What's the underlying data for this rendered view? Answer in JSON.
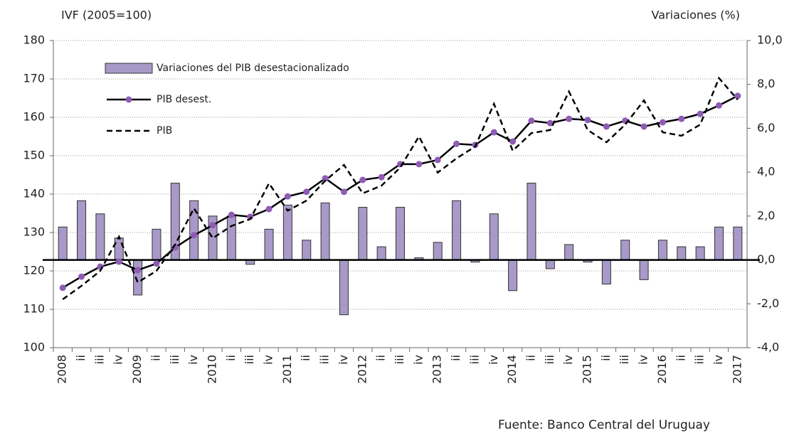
{
  "chart_data": {
    "type": "bar-line",
    "y_label": "IVF (2005=100)",
    "y2_label": "Variaciones (%)",
    "source": "Fuente:  Banco Central del Uruguay",
    "categories": [
      "2008",
      "ii",
      "iii",
      "iv",
      "2009",
      "ii",
      "iii",
      "iv",
      "2010",
      "ii",
      "iii",
      "iv",
      "2011",
      "ii",
      "iii",
      "iv",
      "2012",
      "ii",
      "iii",
      "iv",
      "2013",
      "ii",
      "iii",
      "iv",
      "2014",
      "ii",
      "iii",
      "iv",
      "2015",
      "ii",
      "iii",
      "iv",
      "2016",
      "ii",
      "iii",
      "iv",
      "2017"
    ],
    "series": [
      {
        "name": "Variaciones del PIB desestacionalizado",
        "kind": "bar",
        "axis": "y2",
        "color": "#a899c8",
        "edge_color": "#333333",
        "values": [
          1.5,
          2.7,
          2.1,
          1.0,
          -1.6,
          1.4,
          3.5,
          2.7,
          2.0,
          2.0,
          -0.2,
          1.4,
          2.5,
          0.9,
          2.6,
          -2.5,
          2.4,
          0.6,
          2.4,
          0.1,
          0.8,
          2.7,
          -0.1,
          2.1,
          -1.4,
          3.5,
          -0.4,
          0.7,
          -0.1,
          -1.1,
          0.9,
          -0.9,
          0.9,
          0.6,
          0.6,
          1.5,
          1.5
        ]
      },
      {
        "name": "PIB desest.",
        "kind": "line",
        "color": "#000000",
        "marker_color": "#8e5bb5",
        "values": [
          115.6,
          118.5,
          121.1,
          122.4,
          120.2,
          121.9,
          126.1,
          129.3,
          131.9,
          134.6,
          134.1,
          136.1,
          139.4,
          140.6,
          144.1,
          140.6,
          143.7,
          144.4,
          147.8,
          147.8,
          148.9,
          153.1,
          152.8,
          156.1,
          153.7,
          159.1,
          158.5,
          159.6,
          159.3,
          157.6,
          159.1,
          157.6,
          158.7,
          159.6,
          160.9,
          163.1,
          165.6
        ]
      },
      {
        "name": "PIB",
        "kind": "dashed",
        "color": "#000000",
        "values": [
          112.6,
          116.1,
          120.0,
          128.9,
          117.0,
          120.0,
          126.9,
          136.3,
          128.5,
          131.7,
          133.5,
          142.8,
          135.7,
          138.3,
          143.5,
          147.6,
          140.2,
          142.2,
          146.9,
          155.0,
          145.6,
          149.3,
          152.4,
          163.5,
          151.3,
          155.9,
          156.7,
          166.7,
          156.7,
          153.5,
          158.1,
          164.4,
          156.1,
          155.2,
          158.1,
          170.2,
          164.6
        ]
      }
    ],
    "ylim": [
      100,
      180
    ],
    "yticks": [
      100,
      110,
      120,
      130,
      140,
      150,
      160,
      170,
      180
    ],
    "y2lim": [
      -4,
      10
    ],
    "y2ticks": [
      {
        "value": -4,
        "label": "-4,0"
      },
      {
        "value": -2,
        "label": "-2,0"
      },
      {
        "value": 0,
        "label": "0,0"
      },
      {
        "value": 2,
        "label": "2,0"
      },
      {
        "value": 4,
        "label": "4,0"
      },
      {
        "value": 6,
        "label": "6,0"
      },
      {
        "value": 8,
        "label": "8,0"
      },
      {
        "value": 10,
        "label": "10,0"
      }
    ],
    "grid": true,
    "legend": "upper left"
  }
}
